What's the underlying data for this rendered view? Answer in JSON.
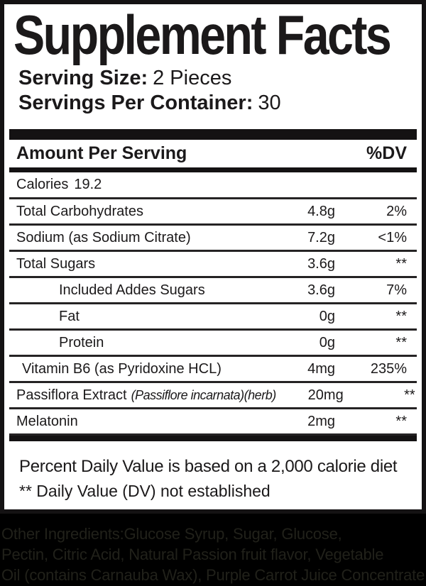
{
  "panel": {
    "title": "Supplement Facts",
    "serving_size": {
      "label": "Serving Size:",
      "value": "2 Pieces"
    },
    "servings_per_container": {
      "label": "Servings Per Container:",
      "value": "30"
    },
    "header": {
      "left": "Amount Per Serving",
      "right": "%DV"
    },
    "calories": {
      "label": "Calories",
      "value": "19.2"
    },
    "rows": [
      {
        "name": "Total Carbohydrates",
        "amount": "4.8g",
        "dv": "2%"
      },
      {
        "name": "Sodium (as Sodium Citrate)",
        "amount": "7.2g",
        "dv": "<1%"
      },
      {
        "name": "Total Sugars",
        "amount": "3.6g",
        "dv": "**"
      },
      {
        "name": "Included Addes Sugars",
        "amount": "3.6g",
        "dv": "7%"
      },
      {
        "name": "Fat",
        "amount": "0g",
        "dv": "**"
      },
      {
        "name": "Protein",
        "amount": "0g",
        "dv": "**"
      },
      {
        "name": "Vitamin B6 (as Pyridoxine HCL)",
        "amount": "4mg",
        "dv": "235%"
      },
      {
        "name": "Passiflora Extract",
        "name_detail": "(Passiflore incarnata)(herb)",
        "amount": "20mg",
        "dv": "**"
      },
      {
        "name": "Melatonin",
        "amount": "2mg",
        "dv": "**"
      }
    ],
    "footnotes": [
      "Percent Daily Value is based on a 2,000 calorie diet",
      "** Daily Value (DV) not established"
    ]
  },
  "other_ingredients": {
    "lines": [
      "Other Ingredients:Glucose Syrup,  Sugar, Glucose,",
      "Pectin, Citric Acid, Natural Passion fruit flavor, Vegetable",
      "Oil (contains Carnauba Wax), Purple Carrot Juice Concentrate"
    ]
  },
  "colors": {
    "panel_bg": "#ffffff",
    "ink": "#1b191a",
    "background": "#000000",
    "dim_ink": "#21211a"
  }
}
